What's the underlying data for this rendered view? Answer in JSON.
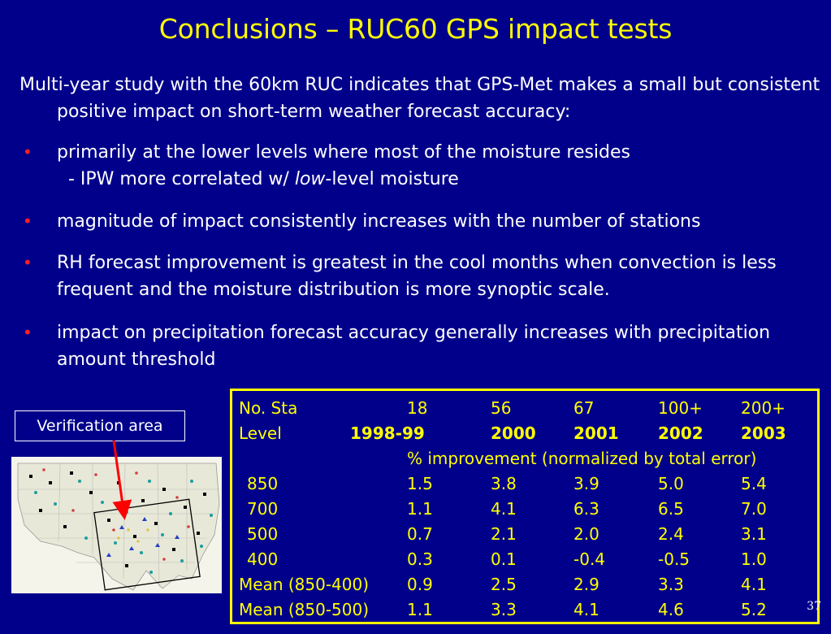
{
  "title": "Conclusions – RUC60 GPS impact tests",
  "intro": "Multi-year study with the 60km RUC indicates that GPS-Met makes a small but consistent positive impact on short-term weather forecast accuracy:",
  "bullets": [
    {
      "text": "primarily at the lower levels where most of the moisture resides",
      "sub_prefix": "- IPW more correlated w/ ",
      "sub_italic": "low",
      "sub_suffix": "-level moisture"
    },
    {
      "text": "magnitude of impact consistently increases with the number of stations"
    },
    {
      "text": "RH forecast improvement is greatest in the cool months when convection is less frequent and the moisture distribution is more synoptic scale."
    },
    {
      "text": "impact on precipitation forecast accuracy generally increases with precipitation amount threshold"
    }
  ],
  "bullet_symbol": "•",
  "verification_label": "Verification area",
  "table": {
    "row_stations": [
      "No. Sta",
      "18",
      "56",
      "67",
      "100+",
      "200+"
    ],
    "row_years": [
      "Level",
      "1998-99",
      "2000",
      "2001",
      "2002",
      "2003"
    ],
    "improvement_note": "% improvement (normalized by total error)",
    "rows": [
      [
        "850",
        "1.5",
        "3.8",
        "3.9",
        "5.0",
        "5.4"
      ],
      [
        "700",
        "1.1",
        "4.1",
        "6.3",
        "6.5",
        "7.0"
      ],
      [
        "500",
        "0.7",
        "2.1",
        "2.0",
        "2.4",
        "3.1"
      ],
      [
        "400",
        "0.3",
        "0.1",
        "-0.4",
        "-0.5",
        "1.0"
      ],
      [
        "Mean (850-400)",
        "0.9",
        "2.5",
        "2.9",
        "3.3",
        "4.1"
      ],
      [
        "Mean (850-500)",
        "1.1",
        "3.3",
        "4.1",
        "4.6",
        "5.2"
      ]
    ]
  },
  "page_number": "37",
  "colors": {
    "background": "#00008b",
    "title": "#ffff00",
    "bullet": "#ff2020",
    "table_text": "#ffff00",
    "table_border": "#ffff00",
    "arrow": "#ff0000"
  }
}
